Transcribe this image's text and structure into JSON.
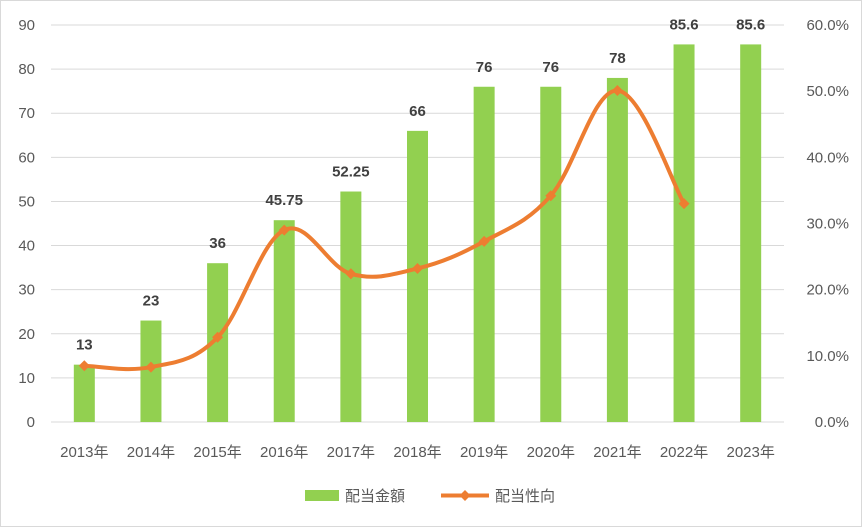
{
  "chart_data": {
    "type": "bar",
    "categories": [
      "2013年",
      "2014年",
      "2015年",
      "2016年",
      "2017年",
      "2018年",
      "2019年",
      "2020年",
      "2021年",
      "2022年",
      "2023年"
    ],
    "series": [
      {
        "name": "配当金額",
        "type": "bar",
        "axis": "left",
        "color": "#92d050",
        "values": [
          13,
          23,
          36,
          45.75,
          52.25,
          66,
          76,
          76,
          78,
          85.6,
          85.6
        ],
        "labels": [
          "13",
          "23",
          "36",
          "45.75",
          "52.25",
          "66",
          "76",
          "76",
          "78",
          "85.6",
          "85.6"
        ]
      },
      {
        "name": "配当性向",
        "type": "line",
        "axis": "right",
        "color": "#ed7d31",
        "values": [
          8.5,
          8.3,
          12.8,
          29.0,
          22.4,
          23.2,
          27.3,
          34.2,
          50.1,
          33.0,
          null
        ]
      }
    ],
    "y_left": {
      "min": 0,
      "max": 90,
      "step": 10,
      "ticks": [
        "0",
        "10",
        "20",
        "30",
        "40",
        "50",
        "60",
        "70",
        "80",
        "90"
      ]
    },
    "y_right": {
      "min": 0,
      "max": 60,
      "step": 10,
      "ticks": [
        "0.0%",
        "10.0%",
        "20.0%",
        "30.0%",
        "40.0%",
        "50.0%",
        "60.0%"
      ]
    },
    "grid": true,
    "legend": "bottom"
  }
}
